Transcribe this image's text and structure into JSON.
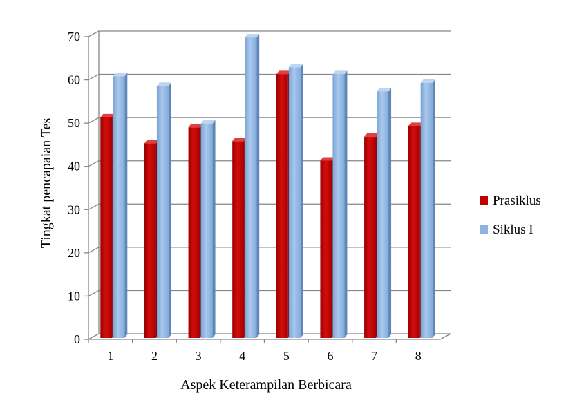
{
  "chart_data": {
    "type": "bar",
    "title": "",
    "xlabel": "Aspek Keterampilan Berbicara",
    "ylabel": "Tingkat pencapaian Tes",
    "categories": [
      "1",
      "2",
      "3",
      "4",
      "5",
      "6",
      "7",
      "8"
    ],
    "ylim": [
      0,
      70
    ],
    "yticks": [
      "0",
      "10",
      "20",
      "30",
      "40",
      "50",
      "60",
      "70"
    ],
    "grid": true,
    "legend_position": "right",
    "series": [
      {
        "name": "Prasiklus",
        "color": "#c00000",
        "values": [
          51,
          45,
          48.7,
          45.5,
          61,
          41,
          46.5,
          49
        ]
      },
      {
        "name": "Siklus I",
        "color": "#8db4e2",
        "values": [
          60.5,
          58.3,
          49.6,
          69.5,
          62.6,
          61,
          57,
          59
        ]
      }
    ]
  }
}
